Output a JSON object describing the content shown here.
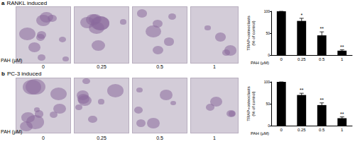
{
  "figure": {
    "panels": [
      {
        "label": "a",
        "title": "RANKL induced",
        "image_axis_label": "PAH (μM)",
        "image_labels": [
          "0",
          "0.25",
          "0.5",
          "1"
        ]
      },
      {
        "label": "b",
        "title": "PC-3 induced",
        "image_axis_label": "PAH (μM)",
        "image_labels": [
          "0",
          "0.25",
          "0.5",
          "1"
        ]
      }
    ]
  },
  "chart_data": [
    {
      "type": "bar",
      "categories": [
        "0",
        "0.25",
        "0.5",
        "1"
      ],
      "values": [
        100,
        78,
        45,
        10
      ],
      "errors": [
        0,
        6,
        8,
        2
      ],
      "significance": [
        null,
        "*",
        "**",
        "**"
      ],
      "color": "#000000",
      "xlabel": "PAH (μM)",
      "ylabel": "TRAP+osteoclasts (% of control)",
      "ylim": [
        0,
        100
      ],
      "yticks": [
        0,
        50,
        100
      ],
      "grid": false
    },
    {
      "type": "bar",
      "categories": [
        "0",
        "0.25",
        "0.5",
        "1"
      ],
      "values": [
        100,
        70,
        47,
        17
      ],
      "errors": [
        0,
        4,
        5,
        3
      ],
      "significance": [
        null,
        "**",
        "**",
        "**"
      ],
      "color": "#000000",
      "xlabel": "PAH (μM)",
      "ylabel": "TRAP+osteoclasts (% of control)",
      "ylim": [
        0,
        100
      ],
      "yticks": [
        0,
        50,
        100
      ],
      "grid": false
    }
  ]
}
